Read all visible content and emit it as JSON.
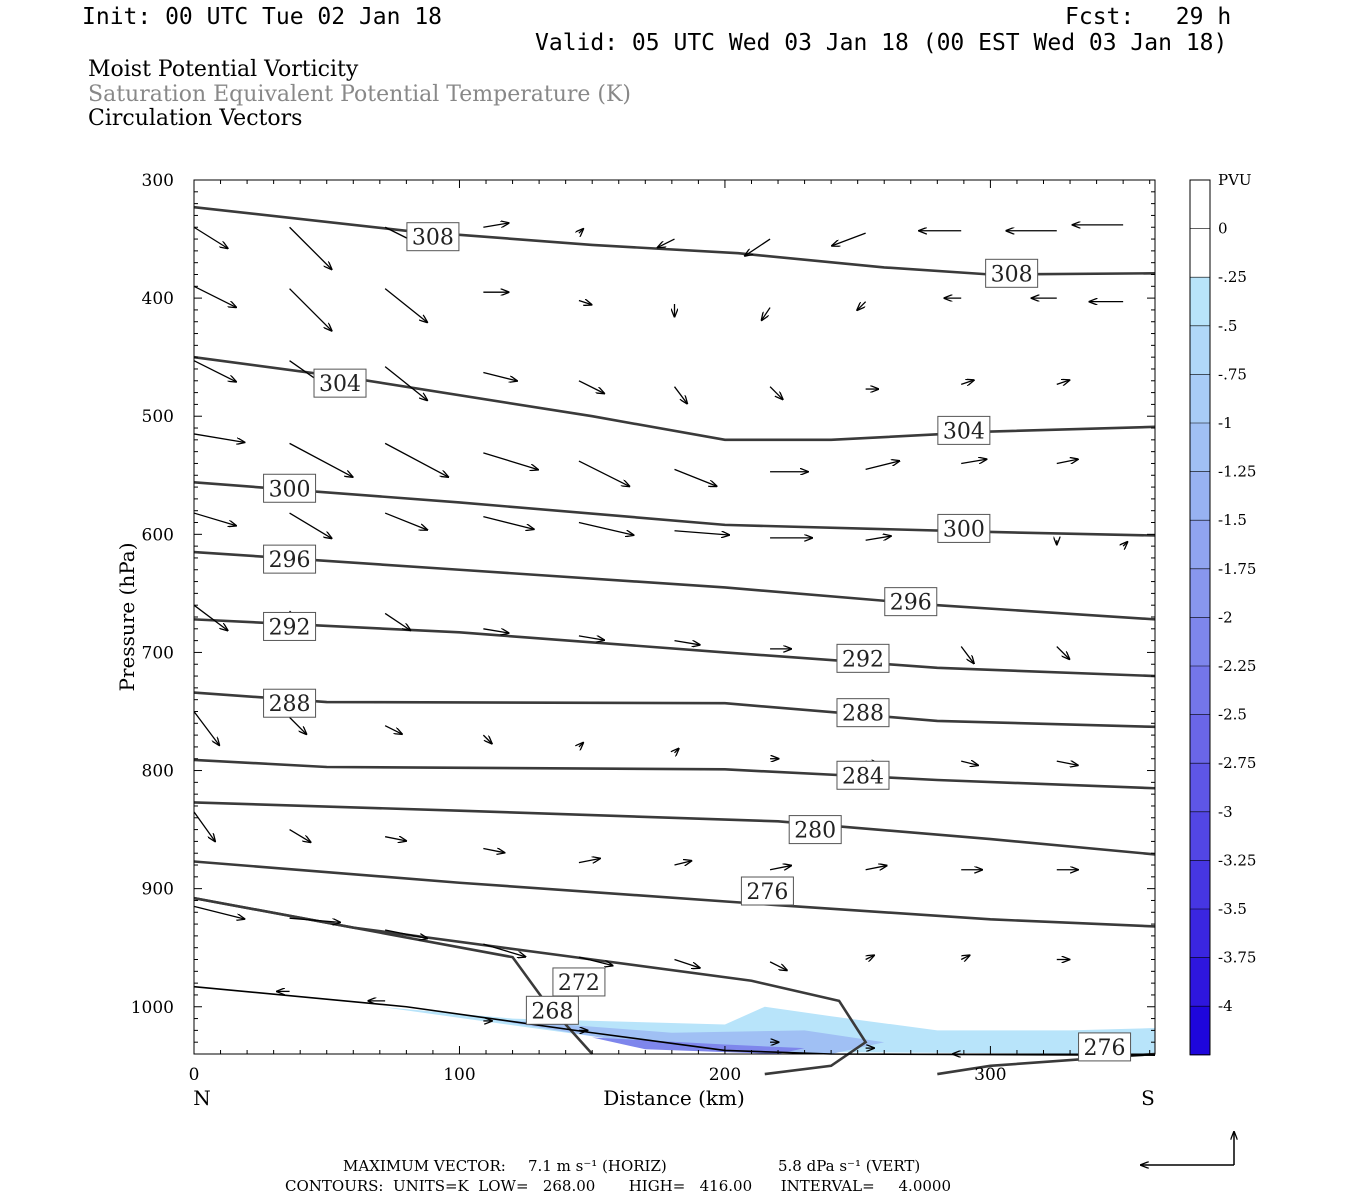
{
  "header": {
    "init": "Init: 00 UTC Tue 02 Jan 18",
    "fcst": "Fcst:   29 h",
    "valid": "Valid: 05 UTC Wed 03 Jan 18 (00 EST Wed 03 Jan 18)"
  },
  "titles": {
    "line1": "Moist Potential Vorticity",
    "line2": "Saturation Equivalent Potential Temperature (K)",
    "line3": "Circulation Vectors",
    "line2_color": "#888888"
  },
  "footer": {
    "max_vector_label": "MAXIMUM VECTOR:",
    "horiz": "7.1 m s⁻¹ (HORIZ)",
    "vert": "5.8 dPa s⁻¹ (VERT)",
    "contours": "CONTOURS:  UNITS=K  LOW=   268.00       HIGH=   416.00      INTERVAL=     4.0000"
  },
  "chart_data": {
    "type": "cross-section",
    "xlabel": "Distance (km)",
    "ylabel": "Pressure (hPa)",
    "xlim": [
      0,
      362
    ],
    "ylim": [
      1040,
      300
    ],
    "x_ticks": [
      "0",
      "100",
      "200",
      "300"
    ],
    "x_tick_values": [
      0,
      100,
      200,
      300
    ],
    "y_ticks": [
      "300",
      "400",
      "500",
      "600",
      "700",
      "800",
      "900",
      "1000"
    ],
    "y_tick_values": [
      300,
      400,
      500,
      600,
      700,
      800,
      900,
      1000
    ],
    "endpoints": {
      "left": "N",
      "right": "S"
    },
    "colorbar": {
      "unit": "PVU",
      "labels": [
        "0",
        "-.25",
        "-.5",
        "-.75",
        "-1",
        "-1.25",
        "-1.5",
        "-1.75",
        "-2",
        "-2.25",
        "-2.5",
        "-2.75",
        "-3",
        "-3.25",
        "-3.5",
        "-3.75",
        "-4"
      ],
      "colors": [
        "#ffffff",
        "#ffffff",
        "#b8e4fa",
        "#b0d8f8",
        "#a8ccf6",
        "#a0c0f4",
        "#98b2f2",
        "#90a4f0",
        "#8896ee",
        "#7e86ec",
        "#7476ea",
        "#6a66e8",
        "#5e56e6",
        "#5246e4",
        "#4636e2",
        "#3a26e0",
        "#2e16de",
        "#1e06dc"
      ]
    },
    "theta_es_contours": [
      {
        "label": "308",
        "points": [
          [
            0,
            323
          ],
          [
            80,
            343
          ],
          [
            150,
            355
          ],
          [
            205,
            362
          ],
          [
            260,
            374
          ],
          [
            300,
            380
          ],
          [
            362,
            379
          ]
        ],
        "label_positions": [
          [
            90,
            348
          ],
          [
            308,
            379
          ]
        ]
      },
      {
        "label": "304",
        "points": [
          [
            0,
            450
          ],
          [
            60,
            468
          ],
          [
            150,
            500
          ],
          [
            200,
            520
          ],
          [
            240,
            520
          ],
          [
            300,
            513
          ],
          [
            362,
            509
          ]
        ],
        "label_positions": [
          [
            55,
            472
          ],
          [
            290,
            512
          ]
        ]
      },
      {
        "label": "300",
        "points": [
          [
            0,
            556
          ],
          [
            100,
            573
          ],
          [
            200,
            592
          ],
          [
            300,
            598
          ],
          [
            362,
            601
          ]
        ],
        "label_positions": [
          [
            36,
            561
          ],
          [
            290,
            595
          ]
        ]
      },
      {
        "label": "296",
        "points": [
          [
            0,
            615
          ],
          [
            100,
            630
          ],
          [
            200,
            645
          ],
          [
            280,
            660
          ],
          [
            362,
            672
          ]
        ],
        "label_positions": [
          [
            36,
            621
          ],
          [
            270,
            657
          ]
        ]
      },
      {
        "label": "292",
        "points": [
          [
            0,
            672
          ],
          [
            100,
            683
          ],
          [
            200,
            700
          ],
          [
            280,
            713
          ],
          [
            362,
            720
          ]
        ],
        "label_positions": [
          [
            36,
            678
          ],
          [
            252,
            705
          ]
        ]
      },
      {
        "label": "288",
        "points": [
          [
            0,
            734
          ],
          [
            50,
            742
          ],
          [
            200,
            743
          ],
          [
            280,
            758
          ],
          [
            362,
            763
          ]
        ],
        "label_positions": [
          [
            36,
            743
          ],
          [
            252,
            751
          ]
        ]
      },
      {
        "label": "284",
        "points": [
          [
            0,
            791
          ],
          [
            50,
            797
          ],
          [
            200,
            799
          ],
          [
            280,
            808
          ],
          [
            362,
            815
          ]
        ],
        "label_positions": [
          [
            252,
            804
          ]
        ]
      },
      {
        "label": "280",
        "points": [
          [
            0,
            827
          ],
          [
            100,
            834
          ],
          [
            220,
            843
          ],
          [
            300,
            858
          ],
          [
            362,
            871
          ]
        ],
        "label_positions": [
          [
            234,
            850
          ]
        ]
      },
      {
        "label": "276",
        "points": [
          [
            0,
            877
          ],
          [
            100,
            895
          ],
          [
            220,
            914
          ],
          [
            300,
            926
          ],
          [
            362,
            932
          ]
        ],
        "label_positions": [
          [
            216,
            902
          ]
        ]
      },
      {
        "label": "272",
        "points": [
          [
            0,
            908
          ],
          [
            60,
            933
          ],
          [
            150,
            960
          ],
          [
            210,
            978
          ],
          [
            243,
            995
          ],
          [
            253,
            1030
          ],
          [
            240,
            1050
          ],
          [
            215,
            1057
          ]
        ],
        "label_positions": [
          [
            145,
            979
          ]
        ]
      },
      {
        "label": "268",
        "points": [
          [
            0,
            908
          ],
          [
            120,
            958
          ],
          [
            132,
            995
          ],
          [
            150,
            1040
          ]
        ],
        "label_positions": [
          [
            135,
            1003
          ]
        ]
      },
      {
        "label": "276",
        "points": [
          [
            280,
            1057
          ],
          [
            300,
            1050
          ],
          [
            362,
            1040
          ]
        ],
        "label_positions": [
          [
            343,
            1034
          ]
        ]
      }
    ],
    "surface": {
      "points": [
        [
          0,
          983
        ],
        [
          80,
          1000
        ],
        [
          150,
          1022
        ],
        [
          200,
          1037
        ],
        [
          240,
          1040
        ],
        [
          362,
          1041
        ]
      ]
    },
    "mpv_shading": {
      "min_pvu": -1.0,
      "max_pvu": -0.25
    },
    "circulation_vectors_note": "vectors depicted; magnitudes per row",
    "vectors": [
      {
        "x": 0,
        "y": 340,
        "dx": 0.8,
        "dy": 0.5
      },
      {
        "x": 36,
        "y": 340,
        "dx": 1.0,
        "dy": 1.0
      },
      {
        "x": 72,
        "y": 340,
        "dx": 1.0,
        "dy": 0.5
      },
      {
        "x": 109,
        "y": 340,
        "dx": 0.6,
        "dy": -0.1
      },
      {
        "x": 145,
        "y": 345,
        "dx": 0.1,
        "dy": -0.1
      },
      {
        "x": 181,
        "y": 350,
        "dx": -0.4,
        "dy": 0.2
      },
      {
        "x": 217,
        "y": 350,
        "dx": -0.6,
        "dy": 0.4
      },
      {
        "x": 253,
        "y": 345,
        "dx": -0.8,
        "dy": 0.3
      },
      {
        "x": 289,
        "y": 343,
        "dx": -1.0,
        "dy": 0.0
      },
      {
        "x": 325,
        "y": 343,
        "dx": -1.2,
        "dy": 0.0
      },
      {
        "x": 350,
        "y": 338,
        "dx": -1.2,
        "dy": 0.0
      },
      {
        "x": 0,
        "y": 390,
        "dx": 1.0,
        "dy": 0.5
      },
      {
        "x": 36,
        "y": 392,
        "dx": 1.0,
        "dy": 1.0
      },
      {
        "x": 72,
        "y": 392,
        "dx": 1.0,
        "dy": 0.8
      },
      {
        "x": 109,
        "y": 395,
        "dx": 0.6,
        "dy": 0.0
      },
      {
        "x": 145,
        "y": 402,
        "dx": 0.3,
        "dy": 0.1
      },
      {
        "x": 181,
        "y": 405,
        "dx": 0.0,
        "dy": 0.3
      },
      {
        "x": 217,
        "y": 408,
        "dx": -0.2,
        "dy": 0.3
      },
      {
        "x": 253,
        "y": 403,
        "dx": -0.2,
        "dy": 0.2
      },
      {
        "x": 289,
        "y": 400,
        "dx": -0.4,
        "dy": 0.0
      },
      {
        "x": 325,
        "y": 400,
        "dx": -0.6,
        "dy": 0.0
      },
      {
        "x": 350,
        "y": 403,
        "dx": -0.8,
        "dy": 0.0
      },
      {
        "x": 0,
        "y": 453,
        "dx": 1.0,
        "dy": 0.5
      },
      {
        "x": 36,
        "y": 453,
        "dx": 1.0,
        "dy": 0.7
      },
      {
        "x": 72,
        "y": 458,
        "dx": 1.0,
        "dy": 0.8
      },
      {
        "x": 109,
        "y": 463,
        "dx": 0.8,
        "dy": 0.2
      },
      {
        "x": 145,
        "y": 470,
        "dx": 0.6,
        "dy": 0.3
      },
      {
        "x": 181,
        "y": 475,
        "dx": 0.3,
        "dy": 0.4
      },
      {
        "x": 217,
        "y": 475,
        "dx": 0.3,
        "dy": 0.3
      },
      {
        "x": 253,
        "y": 477,
        "dx": 0.3,
        "dy": 0.0
      },
      {
        "x": 289,
        "y": 473,
        "dx": 0.3,
        "dy": -0.1
      },
      {
        "x": 325,
        "y": 473,
        "dx": 0.3,
        "dy": -0.1
      },
      {
        "x": 0,
        "y": 515,
        "dx": 1.2,
        "dy": 0.2
      },
      {
        "x": 36,
        "y": 523,
        "dx": 1.5,
        "dy": 0.8
      },
      {
        "x": 72,
        "y": 523,
        "dx": 1.5,
        "dy": 0.8
      },
      {
        "x": 109,
        "y": 531,
        "dx": 1.3,
        "dy": 0.4
      },
      {
        "x": 145,
        "y": 538,
        "dx": 1.2,
        "dy": 0.6
      },
      {
        "x": 181,
        "y": 545,
        "dx": 1.0,
        "dy": 0.4
      },
      {
        "x": 217,
        "y": 547,
        "dx": 0.9,
        "dy": 0.0
      },
      {
        "x": 253,
        "y": 545,
        "dx": 0.8,
        "dy": -0.2
      },
      {
        "x": 289,
        "y": 540,
        "dx": 0.6,
        "dy": -0.1
      },
      {
        "x": 325,
        "y": 540,
        "dx": 0.5,
        "dy": -0.1
      },
      {
        "x": 0,
        "y": 582,
        "dx": 1.0,
        "dy": 0.3
      },
      {
        "x": 36,
        "y": 582,
        "dx": 1.0,
        "dy": 0.6
      },
      {
        "x": 72,
        "y": 582,
        "dx": 1.0,
        "dy": 0.4
      },
      {
        "x": 109,
        "y": 585,
        "dx": 1.2,
        "dy": 0.3
      },
      {
        "x": 145,
        "y": 590,
        "dx": 1.3,
        "dy": 0.3
      },
      {
        "x": 181,
        "y": 597,
        "dx": 1.3,
        "dy": 0.1
      },
      {
        "x": 217,
        "y": 603,
        "dx": 1.0,
        "dy": 0.0
      },
      {
        "x": 253,
        "y": 605,
        "dx": 0.6,
        "dy": -0.1
      },
      {
        "x": 325,
        "y": 605,
        "dx": 0.0,
        "dy": 0.1
      },
      {
        "x": 350,
        "y": 610,
        "dx": 0.1,
        "dy": -0.1
      },
      {
        "x": 0,
        "y": 660,
        "dx": 0.8,
        "dy": 0.6
      },
      {
        "x": 36,
        "y": 665,
        "dx": 0.6,
        "dy": 0.6
      },
      {
        "x": 72,
        "y": 667,
        "dx": 0.6,
        "dy": 0.4
      },
      {
        "x": 109,
        "y": 680,
        "dx": 0.6,
        "dy": 0.1
      },
      {
        "x": 145,
        "y": 686,
        "dx": 0.6,
        "dy": 0.1
      },
      {
        "x": 181,
        "y": 690,
        "dx": 0.6,
        "dy": 0.1
      },
      {
        "x": 217,
        "y": 697,
        "dx": 0.5,
        "dy": 0.0
      },
      {
        "x": 253,
        "y": 698,
        "dx": 0.4,
        "dy": 0.2
      },
      {
        "x": 289,
        "y": 695,
        "dx": 0.3,
        "dy": 0.4
      },
      {
        "x": 325,
        "y": 695,
        "dx": 0.3,
        "dy": 0.3
      },
      {
        "x": 0,
        "y": 750,
        "dx": 0.6,
        "dy": 0.8
      },
      {
        "x": 36,
        "y": 755,
        "dx": 0.4,
        "dy": 0.4
      },
      {
        "x": 72,
        "y": 762,
        "dx": 0.4,
        "dy": 0.2
      },
      {
        "x": 109,
        "y": 770,
        "dx": 0.2,
        "dy": 0.2
      },
      {
        "x": 145,
        "y": 780,
        "dx": 0.1,
        "dy": -0.1
      },
      {
        "x": 181,
        "y": 785,
        "dx": 0.1,
        "dy": -0.1
      },
      {
        "x": 217,
        "y": 790,
        "dx": 0.2,
        "dy": 0.0
      },
      {
        "x": 253,
        "y": 792,
        "dx": 0.3,
        "dy": 0.1
      },
      {
        "x": 289,
        "y": 792,
        "dx": 0.4,
        "dy": 0.1
      },
      {
        "x": 325,
        "y": 792,
        "dx": 0.5,
        "dy": 0.1
      },
      {
        "x": 0,
        "y": 835,
        "dx": 0.5,
        "dy": 0.7
      },
      {
        "x": 36,
        "y": 850,
        "dx": 0.5,
        "dy": 0.3
      },
      {
        "x": 72,
        "y": 856,
        "dx": 0.5,
        "dy": 0.1
      },
      {
        "x": 109,
        "y": 866,
        "dx": 0.5,
        "dy": 0.1
      },
      {
        "x": 145,
        "y": 878,
        "dx": 0.5,
        "dy": -0.1
      },
      {
        "x": 181,
        "y": 880,
        "dx": 0.4,
        "dy": -0.1
      },
      {
        "x": 217,
        "y": 884,
        "dx": 0.5,
        "dy": -0.1
      },
      {
        "x": 253,
        "y": 884,
        "dx": 0.5,
        "dy": -0.1
      },
      {
        "x": 289,
        "y": 884,
        "dx": 0.5,
        "dy": 0.0
      },
      {
        "x": 325,
        "y": 884,
        "dx": 0.5,
        "dy": 0.0
      },
      {
        "x": 0,
        "y": 915,
        "dx": 1.2,
        "dy": 0.3
      },
      {
        "x": 36,
        "y": 925,
        "dx": 1.2,
        "dy": 0.1
      },
      {
        "x": 72,
        "y": 935,
        "dx": 1.0,
        "dy": 0.2
      },
      {
        "x": 109,
        "y": 947,
        "dx": 1.0,
        "dy": 0.3
      },
      {
        "x": 145,
        "y": 958,
        "dx": 0.8,
        "dy": 0.2
      },
      {
        "x": 181,
        "y": 960,
        "dx": 0.6,
        "dy": 0.2
      },
      {
        "x": 217,
        "y": 962,
        "dx": 0.4,
        "dy": 0.2
      },
      {
        "x": 253,
        "y": 960,
        "dx": 0.2,
        "dy": -0.1
      },
      {
        "x": 289,
        "y": 960,
        "dx": 0.2,
        "dy": -0.1
      },
      {
        "x": 325,
        "y": 960,
        "dx": 0.3,
        "dy": 0.0
      },
      {
        "x": 36,
        "y": 987,
        "dx": -0.3,
        "dy": 0.0
      },
      {
        "x": 72,
        "y": 995,
        "dx": -0.4,
        "dy": 0.0
      },
      {
        "x": 109,
        "y": 1012,
        "dx": 0.2,
        "dy": 0.0
      },
      {
        "x": 145,
        "y": 1020,
        "dx": 0.2,
        "dy": 0.0
      },
      {
        "x": 217,
        "y": 1030,
        "dx": 0.2,
        "dy": 0.0
      },
      {
        "x": 253,
        "y": 1035,
        "dx": 0.2,
        "dy": 0.0
      },
      {
        "x": 289,
        "y": 1040,
        "dx": -0.2,
        "dy": 0.0
      }
    ]
  }
}
